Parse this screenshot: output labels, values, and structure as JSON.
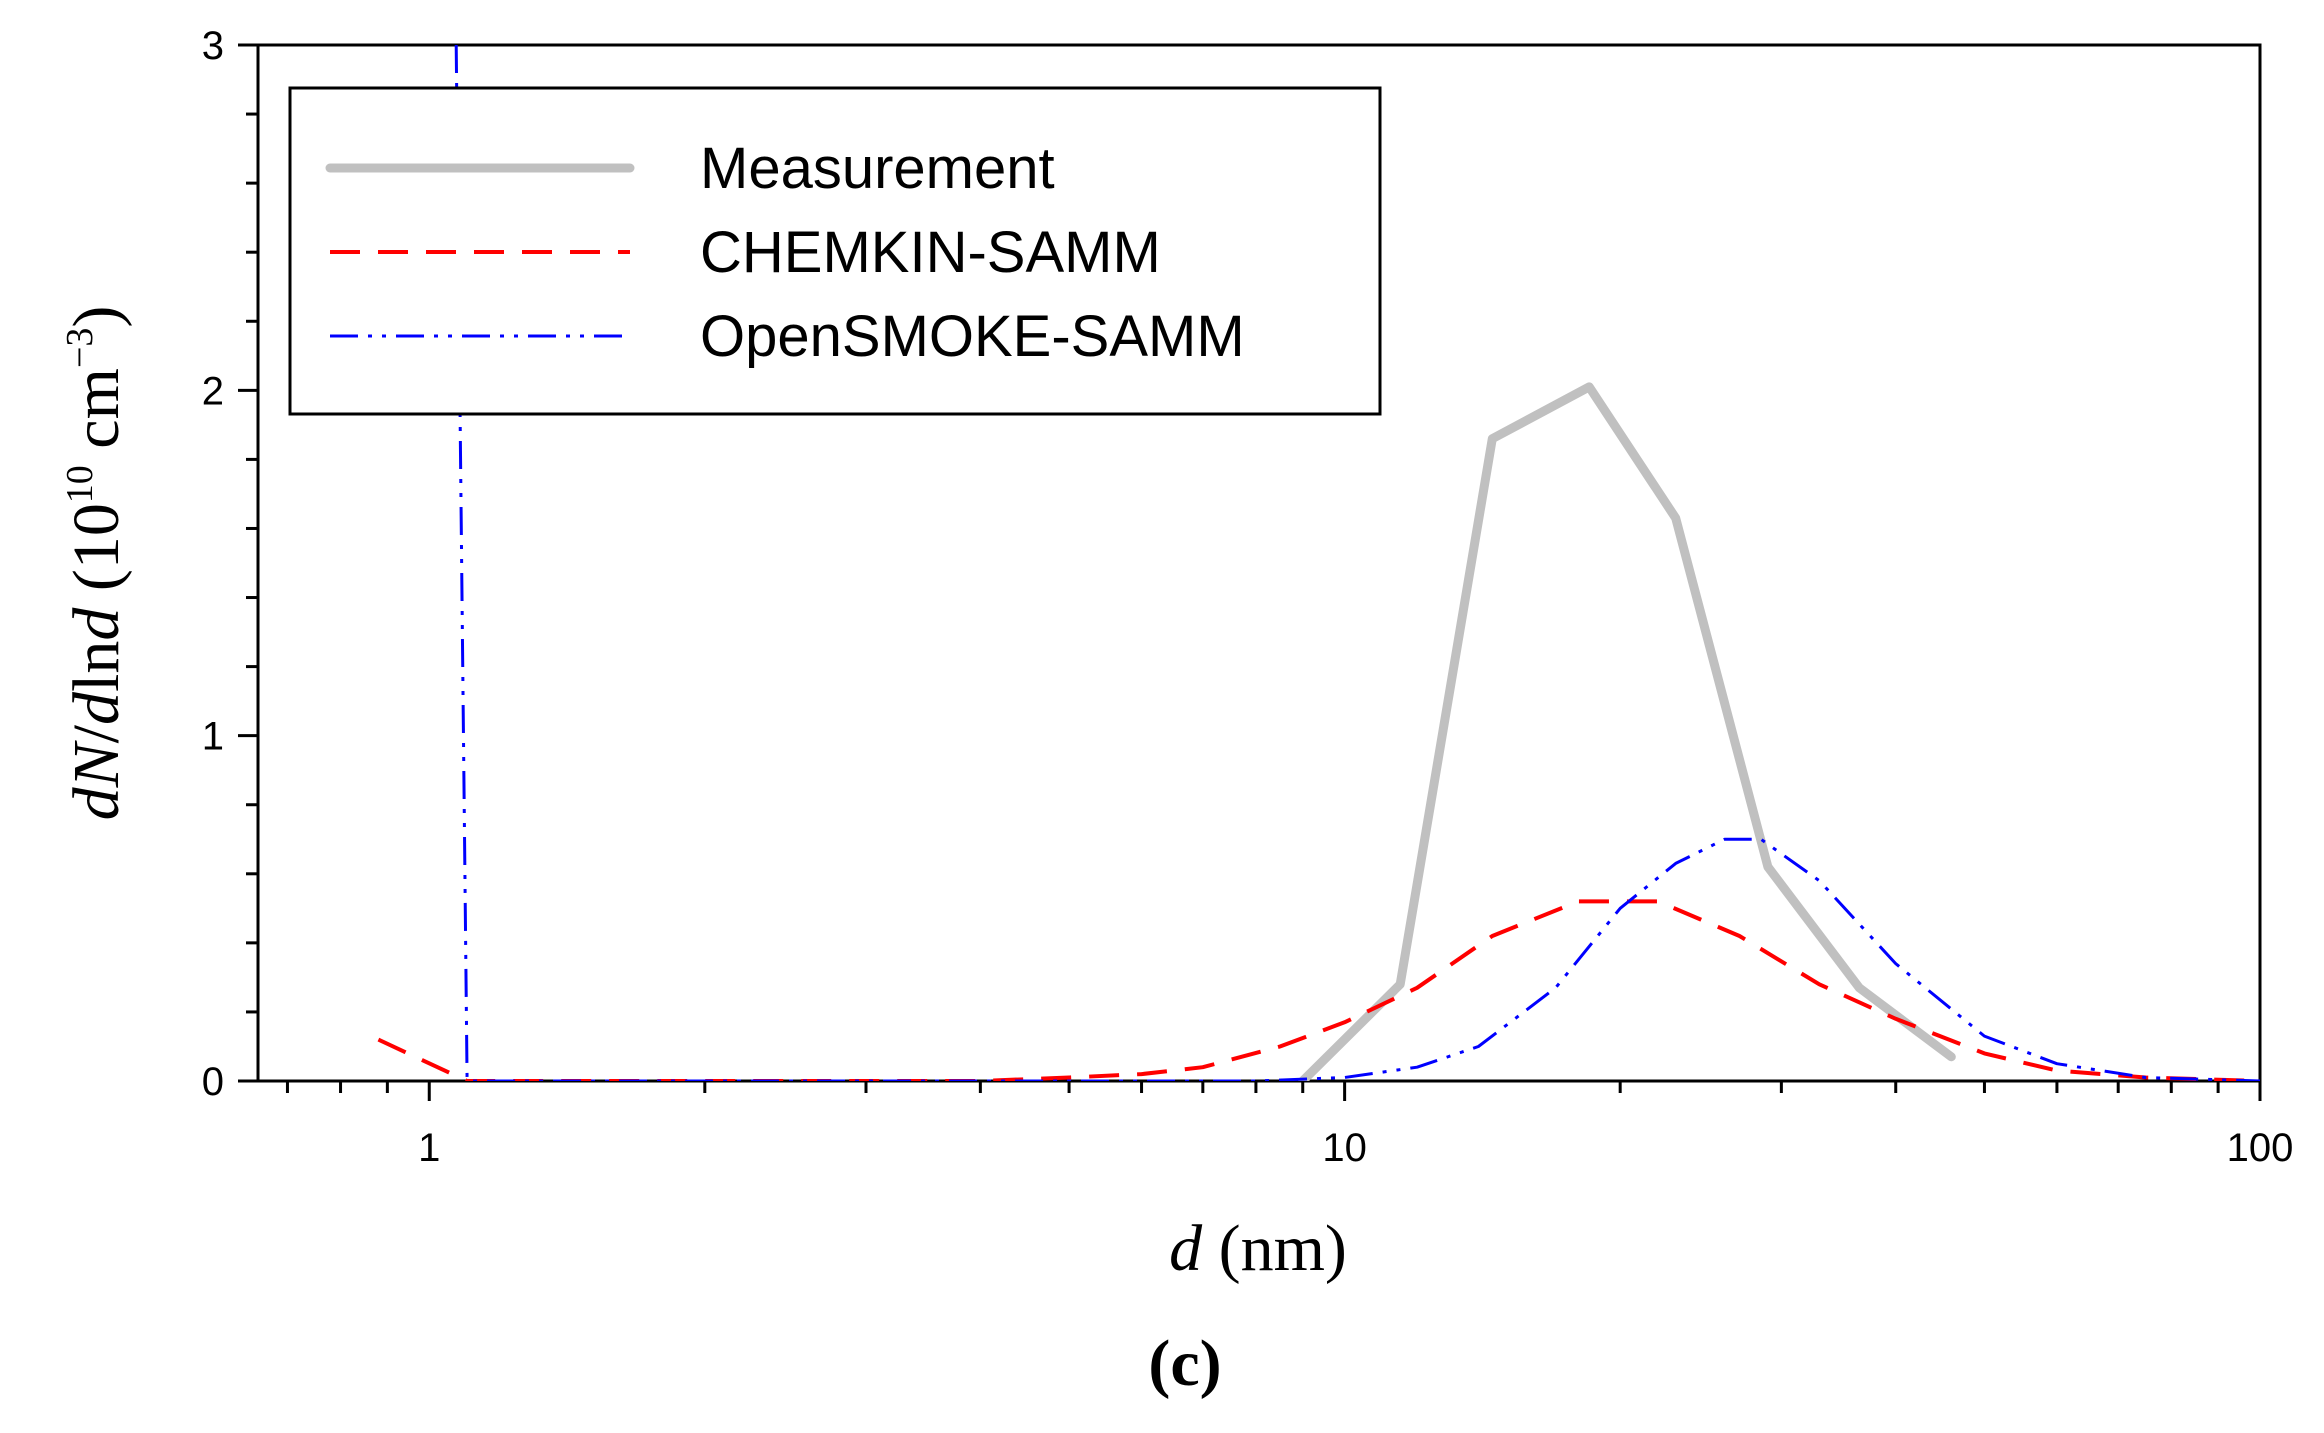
{
  "chart_data": {
    "type": "line",
    "panel_label": "(c)",
    "xscale": "log",
    "xlim": [
      0.65,
      100
    ],
    "ylim": [
      0,
      3
    ],
    "xticks": [
      1,
      10,
      100
    ],
    "xtick_labels": [
      "1",
      "10",
      "100"
    ],
    "yticks": [
      0,
      1,
      2,
      3
    ],
    "ytick_labels": [
      "0",
      "1",
      "2",
      "3"
    ],
    "xlabel": {
      "var": "d",
      "unit": " (nm)"
    },
    "ylabel": {
      "var1": "dN",
      "slash": "/",
      "var2": "d",
      "ln": "ln",
      "var3": "d",
      "unit_open": " (10",
      "exp1": "10",
      "unit_mid": " cm",
      "exp2": "−3",
      "unit_close": ")"
    },
    "legend_position": "top-left",
    "series": [
      {
        "name": "Measurement",
        "color": "#c0c0c0",
        "style": "solid",
        "x": [
          9.0,
          11.5,
          14.5,
          18.5,
          23.0,
          29.0,
          36.5,
          46.0
        ],
        "y": [
          0.0,
          0.28,
          1.86,
          2.01,
          1.63,
          0.62,
          0.27,
          0.07
        ]
      },
      {
        "name": "CHEMKIN-SAMM",
        "color": "#ff0000",
        "style": "dashed",
        "x": [
          0.88,
          1.1,
          2.0,
          3.0,
          4.0,
          5.0,
          6.0,
          7.0,
          8.5,
          10.0,
          12.0,
          14.5,
          18.0,
          22.0,
          27.0,
          33.0,
          40.0,
          50.0,
          60.0,
          75.0,
          100.0
        ],
        "y": [
          0.12,
          0.0,
          0.0,
          0.0,
          0.0,
          0.01,
          0.02,
          0.04,
          0.1,
          0.17,
          0.27,
          0.42,
          0.52,
          0.52,
          0.42,
          0.28,
          0.18,
          0.08,
          0.03,
          0.01,
          0.0
        ],
        "clip_top": false
      },
      {
        "name": "OpenSMOKE-SAMM",
        "color": "#0000ff",
        "style": "dash-dot-dot",
        "x": [
          1.07,
          1.1,
          1.5,
          3.0,
          5.0,
          8.0,
          10.0,
          12.0,
          14.0,
          17.0,
          20.0,
          23.0,
          26.0,
          28.5,
          33.0,
          40.0,
          50.0,
          60.0,
          75.0,
          100.0
        ],
        "y": [
          3.0,
          0.0,
          0.0,
          0.0,
          0.0,
          0.0,
          0.01,
          0.04,
          0.1,
          0.27,
          0.5,
          0.63,
          0.7,
          0.7,
          0.58,
          0.34,
          0.13,
          0.05,
          0.01,
          0.0
        ]
      }
    ]
  }
}
